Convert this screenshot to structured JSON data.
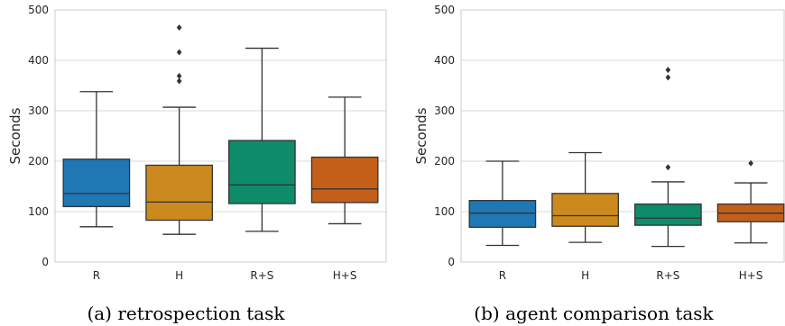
{
  "chart_data": [
    {
      "type": "boxplot",
      "caption": "(a) retrospection task",
      "ylabel": "Seconds",
      "ylim": [
        0,
        500
      ],
      "yticks": [
        0,
        100,
        200,
        300,
        400,
        500
      ],
      "grid": true,
      "categories": [
        "R",
        "H",
        "R+S",
        "H+S"
      ],
      "colors": [
        "#1f77b4",
        "#cc8a1e",
        "#0e8c6a",
        "#c45f1a"
      ],
      "boxes": [
        {
          "category": "R",
          "min": 70,
          "q1": 110,
          "median": 136,
          "q3": 204,
          "max": 338,
          "outliers": []
        },
        {
          "category": "H",
          "min": 55,
          "q1": 83,
          "median": 119,
          "q3": 192,
          "max": 307,
          "outliers": [
            359,
            369,
            416,
            465
          ]
        },
        {
          "category": "R+S",
          "min": 61,
          "q1": 116,
          "median": 153,
          "q3": 241,
          "max": 424,
          "outliers": []
        },
        {
          "category": "H+S",
          "min": 76,
          "q1": 118,
          "median": 145,
          "q3": 208,
          "max": 327,
          "outliers": []
        }
      ]
    },
    {
      "type": "boxplot",
      "caption": "(b) agent comparison task",
      "ylabel": "Seconds",
      "ylim": [
        0,
        500
      ],
      "yticks": [
        0,
        100,
        200,
        300,
        400,
        500
      ],
      "grid": true,
      "categories": [
        "R",
        "H",
        "R+S",
        "H+S"
      ],
      "colors": [
        "#1f77b4",
        "#cc8a1e",
        "#0e8c6a",
        "#c45f1a"
      ],
      "boxes": [
        {
          "category": "R",
          "min": 33,
          "q1": 69,
          "median": 97,
          "q3": 122,
          "max": 200,
          "outliers": []
        },
        {
          "category": "H",
          "min": 39,
          "q1": 71,
          "median": 92,
          "q3": 136,
          "max": 217,
          "outliers": []
        },
        {
          "category": "R+S",
          "min": 31,
          "q1": 73,
          "median": 87,
          "q3": 115,
          "max": 159,
          "outliers": [
            188,
            366,
            381
          ]
        },
        {
          "category": "H+S",
          "min": 38,
          "q1": 80,
          "median": 97,
          "q3": 115,
          "max": 157,
          "outliers": [
            196
          ]
        }
      ]
    }
  ]
}
